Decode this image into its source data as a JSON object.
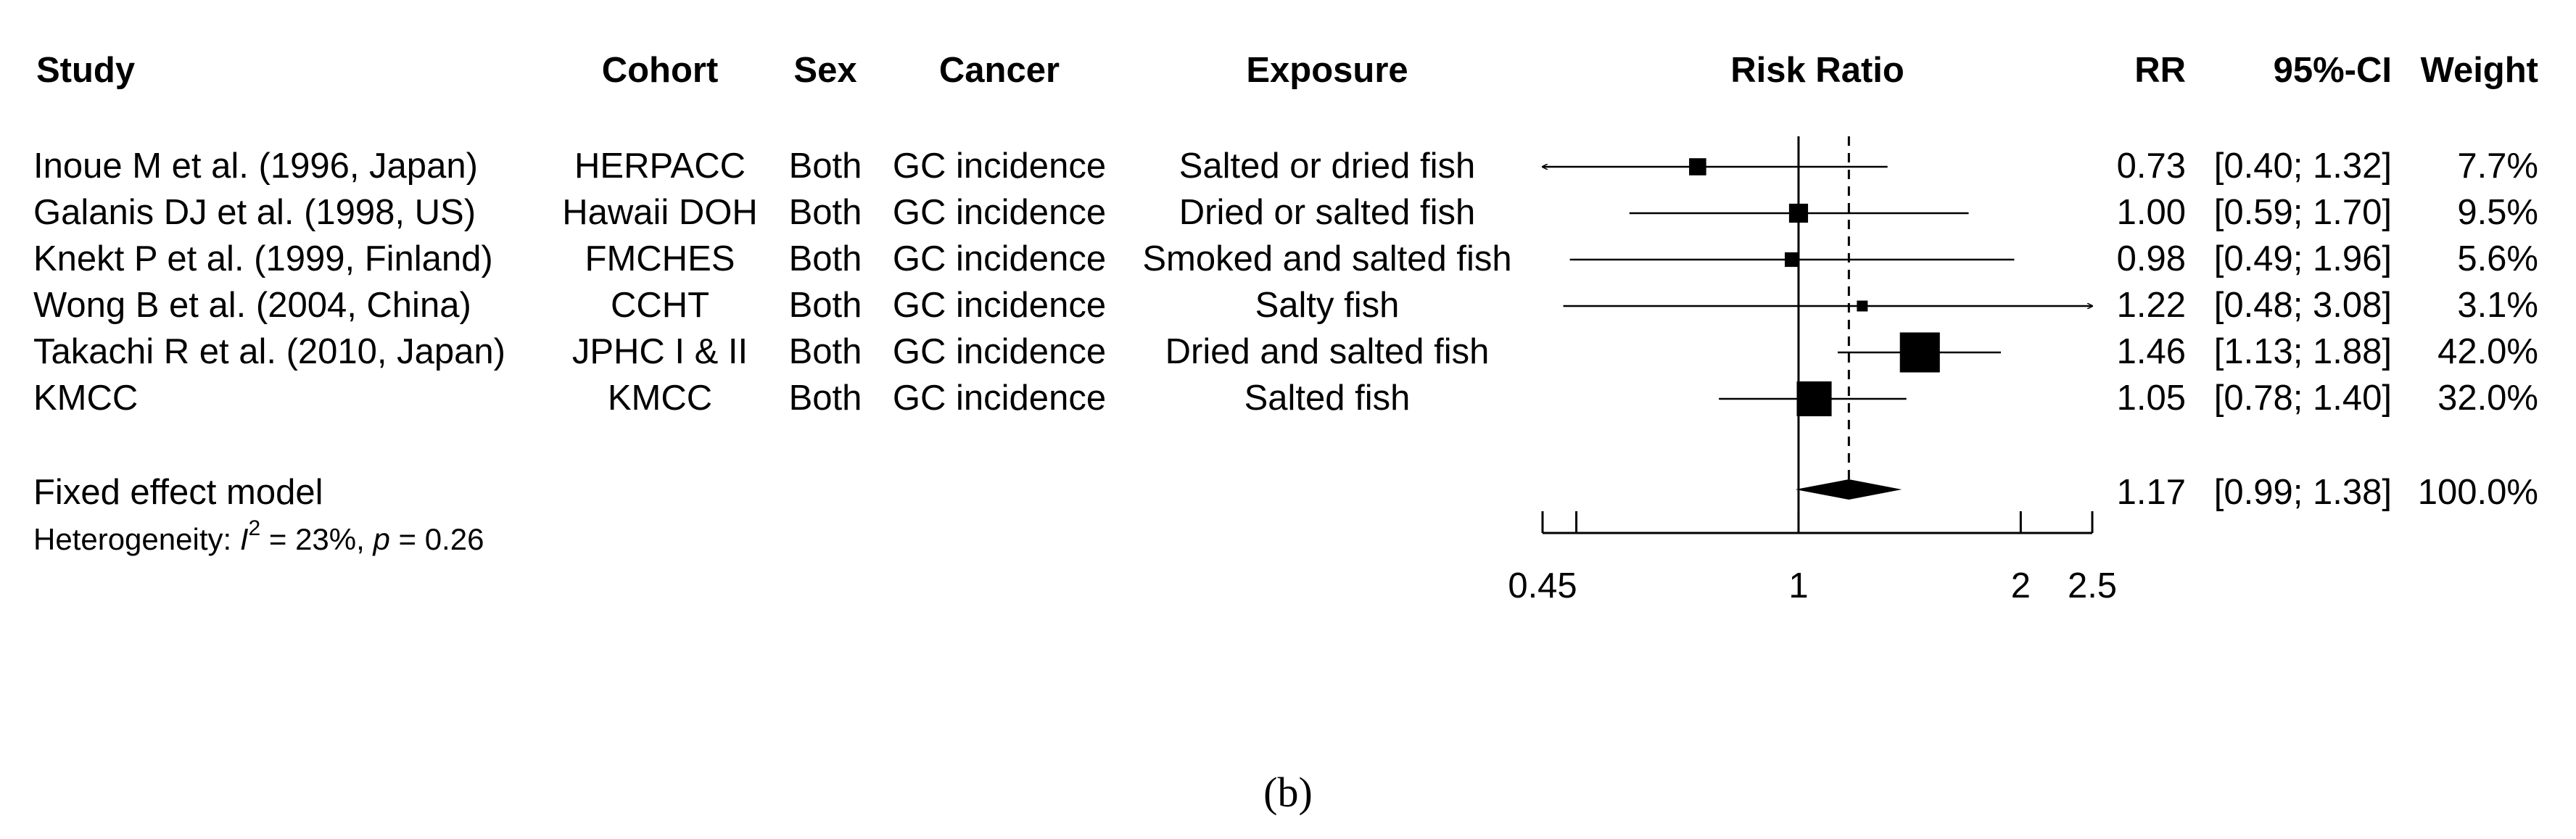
{
  "chart_data": {
    "type": "forest",
    "columns": {
      "study": "Study",
      "cohort": "Cohort",
      "sex": "Sex",
      "cancer": "Cancer",
      "exposure": "Exposure",
      "plot": "Risk Ratio",
      "rr": "RR",
      "ci": "95%-CI",
      "weight": "Weight"
    },
    "studies": [
      {
        "study": "Inoue M et al. (1996, Japan)",
        "cohort": "HERPACC",
        "sex": "Both",
        "cancer": "GC incidence",
        "exposure": "Salted or dried fish",
        "rr": 0.73,
        "lower": 0.4,
        "upper": 1.32,
        "rr_text": "0.73",
        "ci_text": "[0.40; 1.32]",
        "weight_text": "7.7%",
        "weight": 7.7
      },
      {
        "study": "Galanis DJ et al. (1998, US)",
        "cohort": "Hawaii DOH",
        "sex": "Both",
        "cancer": "GC incidence",
        "exposure": "Dried or salted fish",
        "rr": 1.0,
        "lower": 0.59,
        "upper": 1.7,
        "rr_text": "1.00",
        "ci_text": "[0.59; 1.70]",
        "weight_text": "9.5%",
        "weight": 9.5
      },
      {
        "study": "Knekt P et al. (1999, Finland)",
        "cohort": "FMCHES",
        "sex": "Both",
        "cancer": "GC incidence",
        "exposure": "Smoked and salted fish",
        "rr": 0.98,
        "lower": 0.49,
        "upper": 1.96,
        "rr_text": "0.98",
        "ci_text": "[0.49; 1.96]",
        "weight_text": "5.6%",
        "weight": 5.6
      },
      {
        "study": "Wong B et al. (2004, China)",
        "cohort": "CCHT",
        "sex": "Both",
        "cancer": "GC incidence",
        "exposure": "Salty fish",
        "rr": 1.22,
        "lower": 0.48,
        "upper": 3.08,
        "rr_text": "1.22",
        "ci_text": "[0.48; 3.08]",
        "weight_text": "3.1%",
        "weight": 3.1
      },
      {
        "study": "Takachi R et al. (2010, Japan)",
        "cohort": "JPHC I & II",
        "sex": "Both",
        "cancer": "GC incidence",
        "exposure": "Dried and salted fish",
        "rr": 1.46,
        "lower": 1.13,
        "upper": 1.88,
        "rr_text": "1.46",
        "ci_text": "[1.13; 1.88]",
        "weight_text": "42.0%",
        "weight": 42.0
      },
      {
        "study": "KMCC",
        "cohort": "KMCC",
        "sex": "Both",
        "cancer": "GC incidence",
        "exposure": "Salted fish",
        "rr": 1.05,
        "lower": 0.78,
        "upper": 1.4,
        "rr_text": "1.05",
        "ci_text": "[0.78; 1.40]",
        "weight_text": "32.0%",
        "weight": 32.0
      }
    ],
    "pooled": {
      "label": "Fixed effect model",
      "rr": 1.17,
      "lower": 0.99,
      "upper": 1.38,
      "rr_text": "1.17",
      "ci_text": "[0.99; 1.38]",
      "weight_text": "100.0%"
    },
    "heterogeneity": {
      "prefix": "Heterogeneity: ",
      "i_symbol": "I",
      "sup": "2",
      "i2_part": " = 23%, ",
      "p_symbol": "p",
      "p_part": " = 0.26"
    },
    "x_axis": {
      "scale": "log",
      "range": [
        0.45,
        2.5
      ],
      "ticks": [
        0.45,
        0.5,
        1,
        2,
        2.5
      ],
      "tick_labels": [
        {
          "value": 0.45,
          "label": "0.45"
        },
        {
          "value": 1,
          "label": "1"
        },
        {
          "value": 2,
          "label": "2"
        },
        {
          "value": 2.5,
          "label": "2.5"
        }
      ],
      "reference_line": 1
    },
    "panel_label": "(b)"
  }
}
